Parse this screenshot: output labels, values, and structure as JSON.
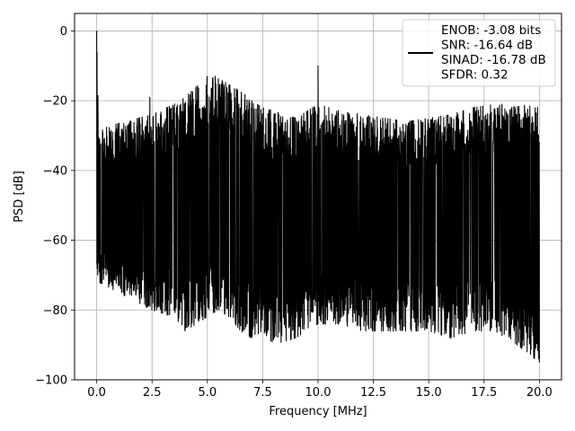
{
  "chart_data": {
    "type": "line",
    "xlabel": "Frequency [MHz]",
    "ylabel": "PSD [dB]",
    "xlim": [
      -1.0,
      21.0
    ],
    "ylim": [
      -100,
      5
    ],
    "xticks": [
      0.0,
      2.5,
      5.0,
      7.5,
      10.0,
      12.5,
      15.0,
      17.5,
      20.0
    ],
    "xtick_labels": [
      "0.0",
      "2.5",
      "5.0",
      "7.5",
      "10.0",
      "12.5",
      "15.0",
      "17.5",
      "20.0"
    ],
    "yticks": [
      0,
      -20,
      -40,
      -60,
      -80,
      -100
    ],
    "ytick_labels": [
      "0",
      "−20",
      "−40",
      "−60",
      "−80",
      "−100"
    ],
    "grid": true,
    "legend_position": "top-right",
    "legend": {
      "lines": [
        "ENOB: -3.08 bits",
        "SNR: -16.64 dB",
        "SINAD: -16.78 dB",
        "SFDR: 0.32"
      ]
    },
    "series": [
      {
        "color": "#000000",
        "envelope": {
          "x": [
            0.0,
            0.1,
            2.5,
            3.5,
            4.0,
            4.5,
            5.0,
            5.5,
            6.0,
            6.5,
            7.0,
            7.5,
            8.0,
            9.0,
            10.0,
            11.0,
            12.0,
            13.0,
            14.0,
            15.0,
            16.0,
            17.0,
            18.0,
            19.0,
            20.0
          ],
          "upper": [
            0.0,
            -28,
            -24,
            -21,
            -19,
            -16,
            -13,
            -13,
            -15,
            -17,
            -20,
            -22,
            -23,
            -25,
            -21,
            -23,
            -24,
            -25,
            -26,
            -25,
            -24,
            -22,
            -21,
            -21,
            -22
          ],
          "lower": [
            -72,
            -72,
            -80,
            -82,
            -86,
            -84,
            -82,
            -80,
            -82,
            -86,
            -88,
            -86,
            -90,
            -88,
            -84,
            -84,
            -86,
            -86,
            -86,
            -86,
            -88,
            -86,
            -86,
            -90,
            -95
          ]
        },
        "peaks": [
          {
            "x": 0.0,
            "y": 0.0
          },
          {
            "x": 2.4,
            "y": -19
          },
          {
            "x": 10.0,
            "y": -10
          },
          {
            "x": 20.0,
            "y": -95
          }
        ]
      }
    ]
  }
}
